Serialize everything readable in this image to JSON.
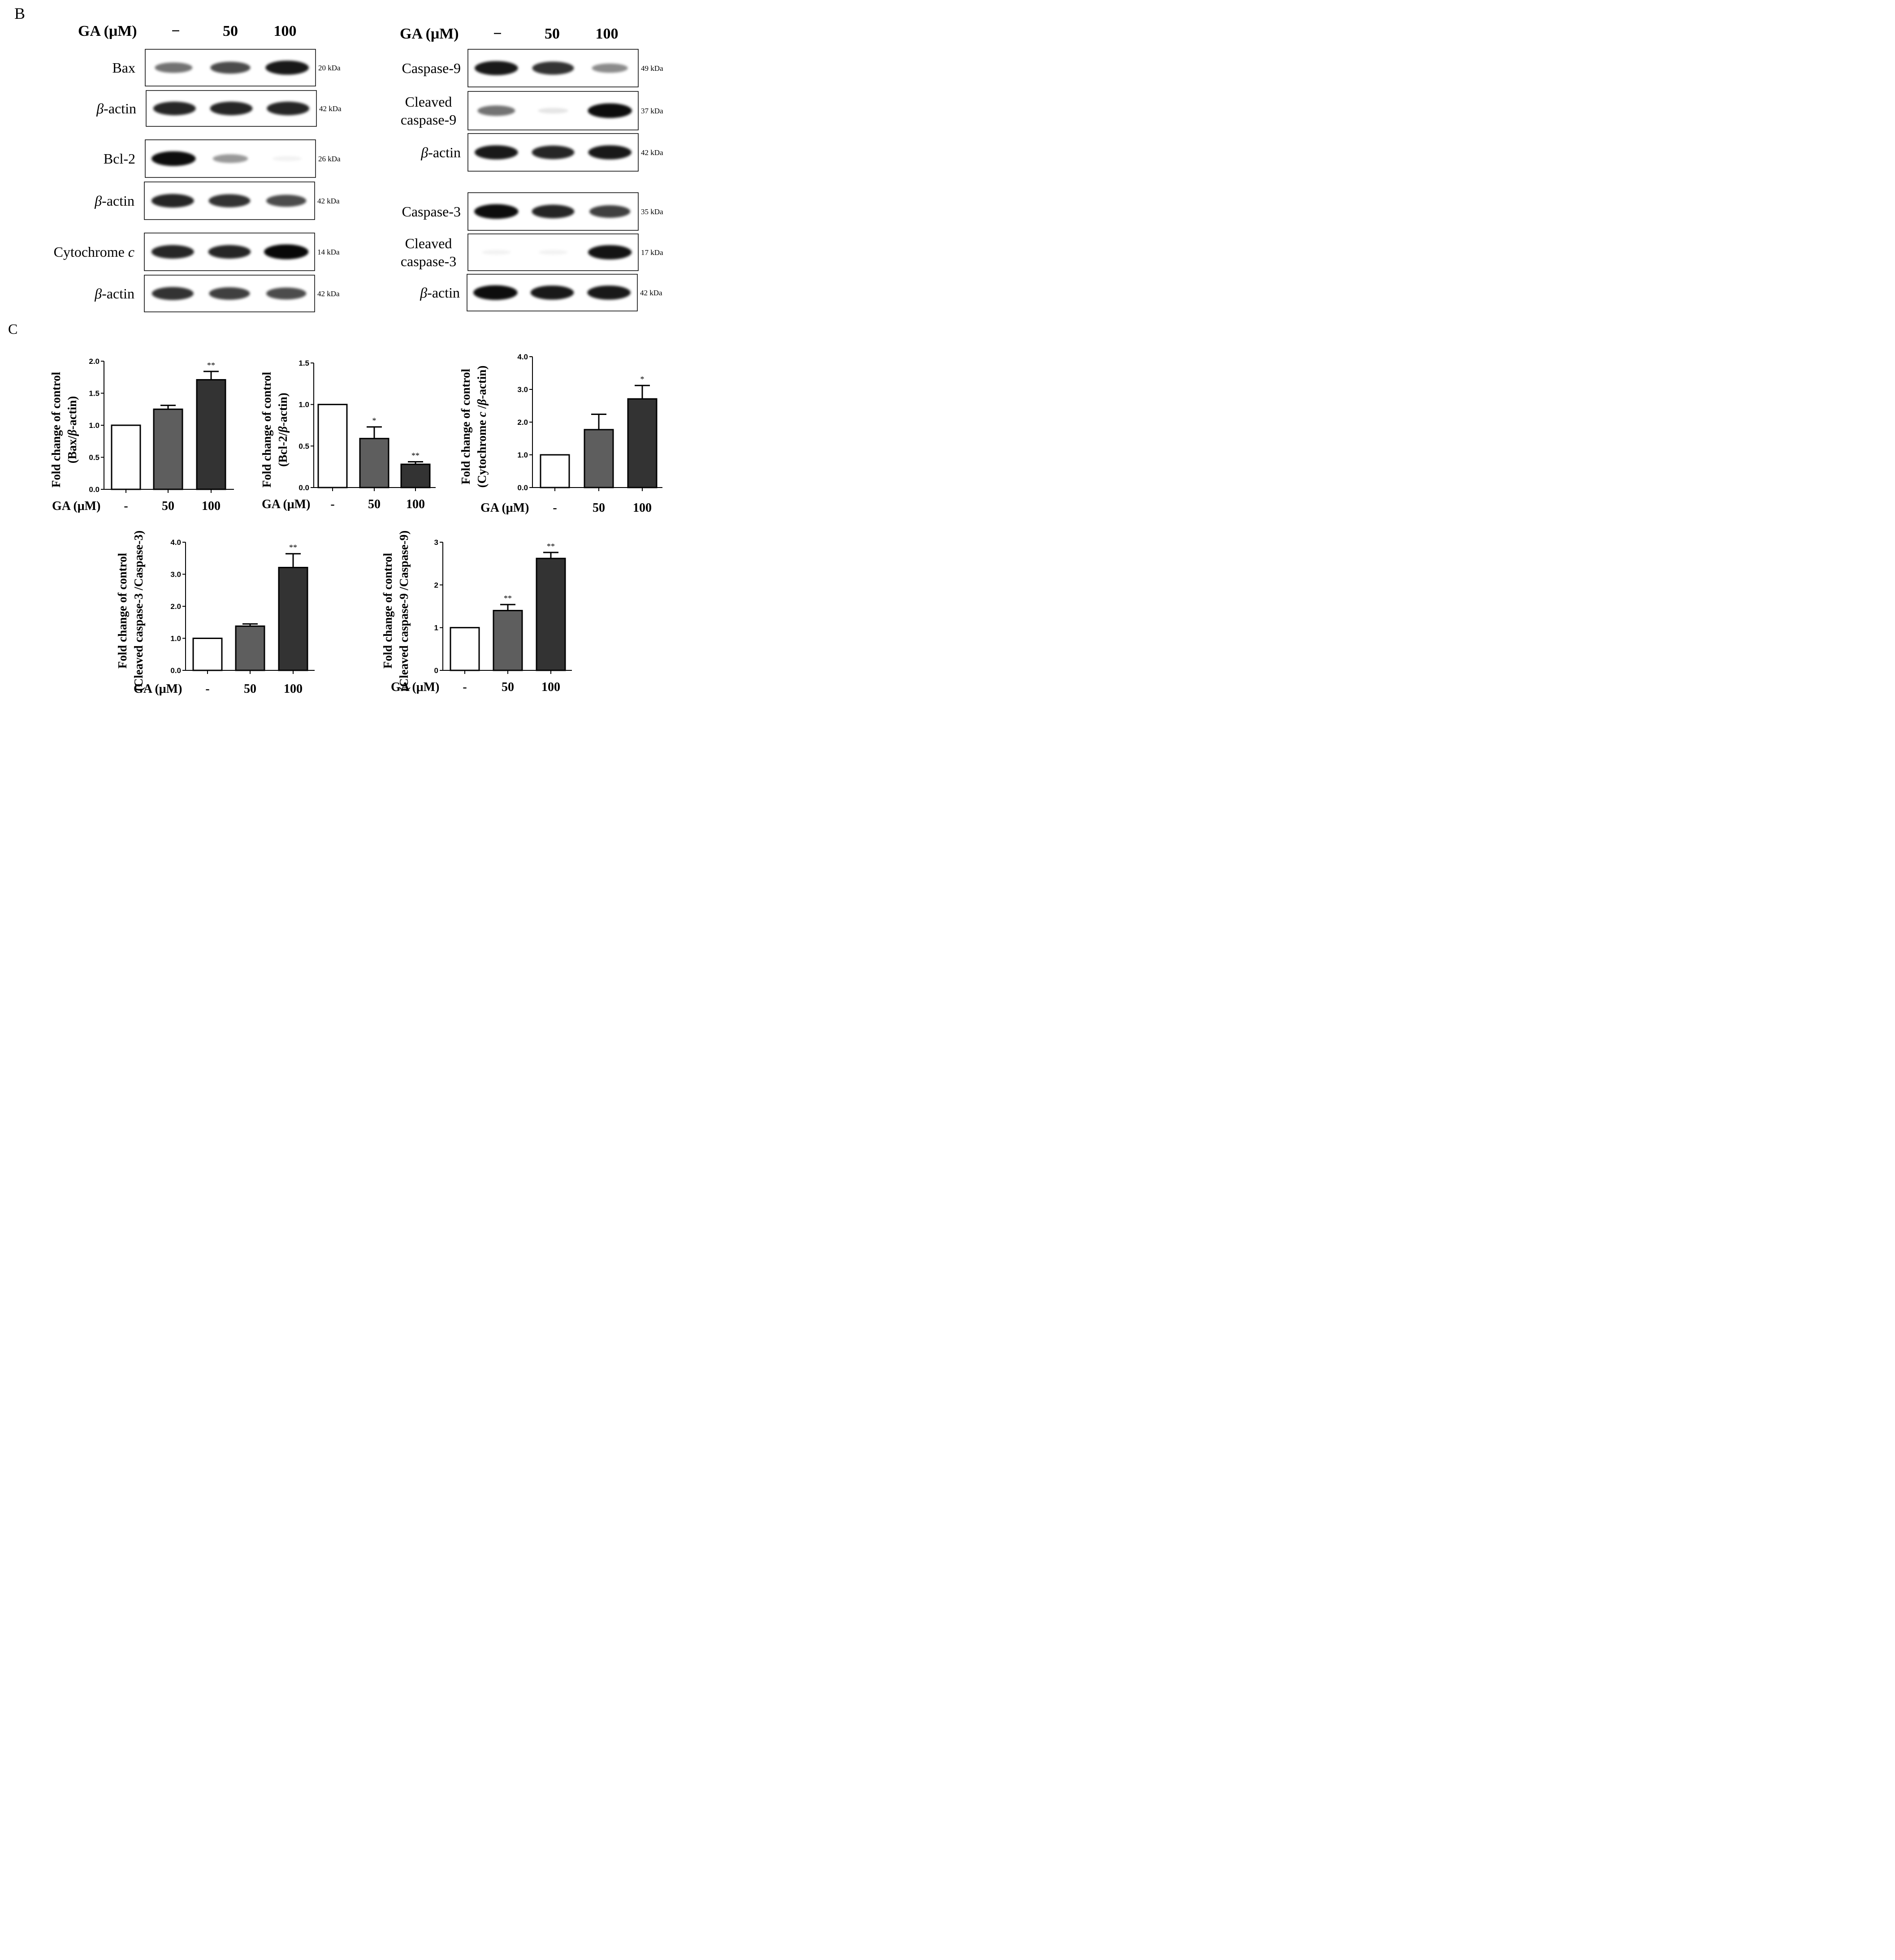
{
  "panel_b": {
    "letter": "B",
    "header_label": "GA (μM)",
    "lanes": [
      "−",
      "50",
      "100"
    ],
    "left_blots": [
      {
        "label": "Bax",
        "kda": "20 kDa",
        "bands": [
          0.55,
          0.7,
          0.9
        ]
      },
      {
        "label": "β-actin",
        "kda": "42 kDa",
        "bands": [
          0.85,
          0.85,
          0.85
        ]
      },
      {
        "label": "Bcl-2",
        "kda": "26 kDa",
        "bands": [
          0.95,
          0.4,
          0.04
        ]
      },
      {
        "label": "β-actin",
        "kda": "42 kDa",
        "bands": [
          0.85,
          0.8,
          0.7
        ]
      },
      {
        "label": "Cytochrome c",
        "kda": "14 kDa",
        "bands": [
          0.85,
          0.85,
          0.97
        ]
      },
      {
        "label": "β-actin",
        "kda": "42 kDa",
        "bands": [
          0.8,
          0.75,
          0.7
        ]
      }
    ],
    "right_blots": [
      {
        "label": "Caspase-9",
        "kda": "49 kDa",
        "bands": [
          0.9,
          0.8,
          0.45
        ]
      },
      {
        "label": "Cleaved caspase-9",
        "kda": "37 kDa",
        "bands": [
          0.55,
          0.1,
          0.95
        ]
      },
      {
        "label": "β-actin",
        "kda": "42 kDa",
        "bands": [
          0.9,
          0.85,
          0.9
        ]
      },
      {
        "label": "Caspase-3",
        "kda": "35 kDa",
        "bands": [
          0.95,
          0.85,
          0.75
        ]
      },
      {
        "label": "Cleaved caspase-3",
        "kda": "17 kDa",
        "bands": [
          0.02,
          0.02,
          0.92
        ]
      },
      {
        "label": "β-actin",
        "kda": "42 kDa",
        "bands": [
          0.95,
          0.9,
          0.9
        ]
      }
    ]
  },
  "panel_c": {
    "letter": "C",
    "x_axis_label": "GA (μM)"
  },
  "colors": {
    "bar_control": "#ffffff",
    "bar_50": "#5e5e5e",
    "bar_100": "#333333",
    "axis": "#000000"
  },
  "chart_data": [
    {
      "type": "bar",
      "ylabel_line1": "Fold change of control",
      "ylabel_line2": "(Bax/β-actin)",
      "categories": [
        "-",
        "50",
        "100"
      ],
      "values": [
        1.0,
        1.25,
        1.71
      ],
      "errors": [
        0,
        0.06,
        0.13
      ],
      "significance": [
        "",
        "",
        "**"
      ],
      "ylim": [
        0,
        2.0
      ],
      "yticks": [
        "0.0",
        "0.5",
        "1.0",
        "1.5",
        "2.0"
      ]
    },
    {
      "type": "bar",
      "ylabel_line1": "Fold change of control",
      "ylabel_line2": "(Bcl-2/β-actin)",
      "categories": [
        "-",
        "50",
        "100"
      ],
      "values": [
        1.0,
        0.59,
        0.28
      ],
      "errors": [
        0,
        0.14,
        0.03
      ],
      "significance": [
        "",
        "*",
        "**"
      ],
      "ylim": [
        0,
        1.5
      ],
      "yticks": [
        "0.0",
        "0.5",
        "1.0",
        "1.5"
      ]
    },
    {
      "type": "bar",
      "ylabel_line1": "Fold change of control",
      "ylabel_line2": "(Cytochrome c /β-actin)",
      "categories": [
        "-",
        "50",
        "100"
      ],
      "values": [
        1.0,
        1.77,
        2.71
      ],
      "errors": [
        0,
        0.47,
        0.41
      ],
      "significance": [
        "",
        "",
        "*"
      ],
      "ylim": [
        0,
        4.0
      ],
      "yticks": [
        "0.0",
        "1.0",
        "2.0",
        "3.0",
        "4.0"
      ]
    },
    {
      "type": "bar",
      "ylabel_line1": "Fold change of control",
      "ylabel_line2": "(Cleaved caspase-3 /Caspase-3)",
      "categories": [
        "-",
        "50",
        "100"
      ],
      "values": [
        1.0,
        1.38,
        3.21
      ],
      "errors": [
        0,
        0.07,
        0.43
      ],
      "significance": [
        "",
        "",
        "**"
      ],
      "ylim": [
        0,
        4.0
      ],
      "yticks": [
        "0.0",
        "1.0",
        "2.0",
        "3.0",
        "4.0"
      ]
    },
    {
      "type": "bar",
      "ylabel_line1": "Fold change of control",
      "ylabel_line2": "(Cleaved caspase-9 /Caspase-9)",
      "categories": [
        "-",
        "50",
        "100"
      ],
      "values": [
        1.0,
        1.4,
        2.62
      ],
      "errors": [
        0,
        0.14,
        0.14
      ],
      "significance": [
        "",
        "**",
        "**"
      ],
      "ylim": [
        0,
        3
      ],
      "yticks": [
        "0",
        "1",
        "2",
        "3"
      ]
    }
  ]
}
